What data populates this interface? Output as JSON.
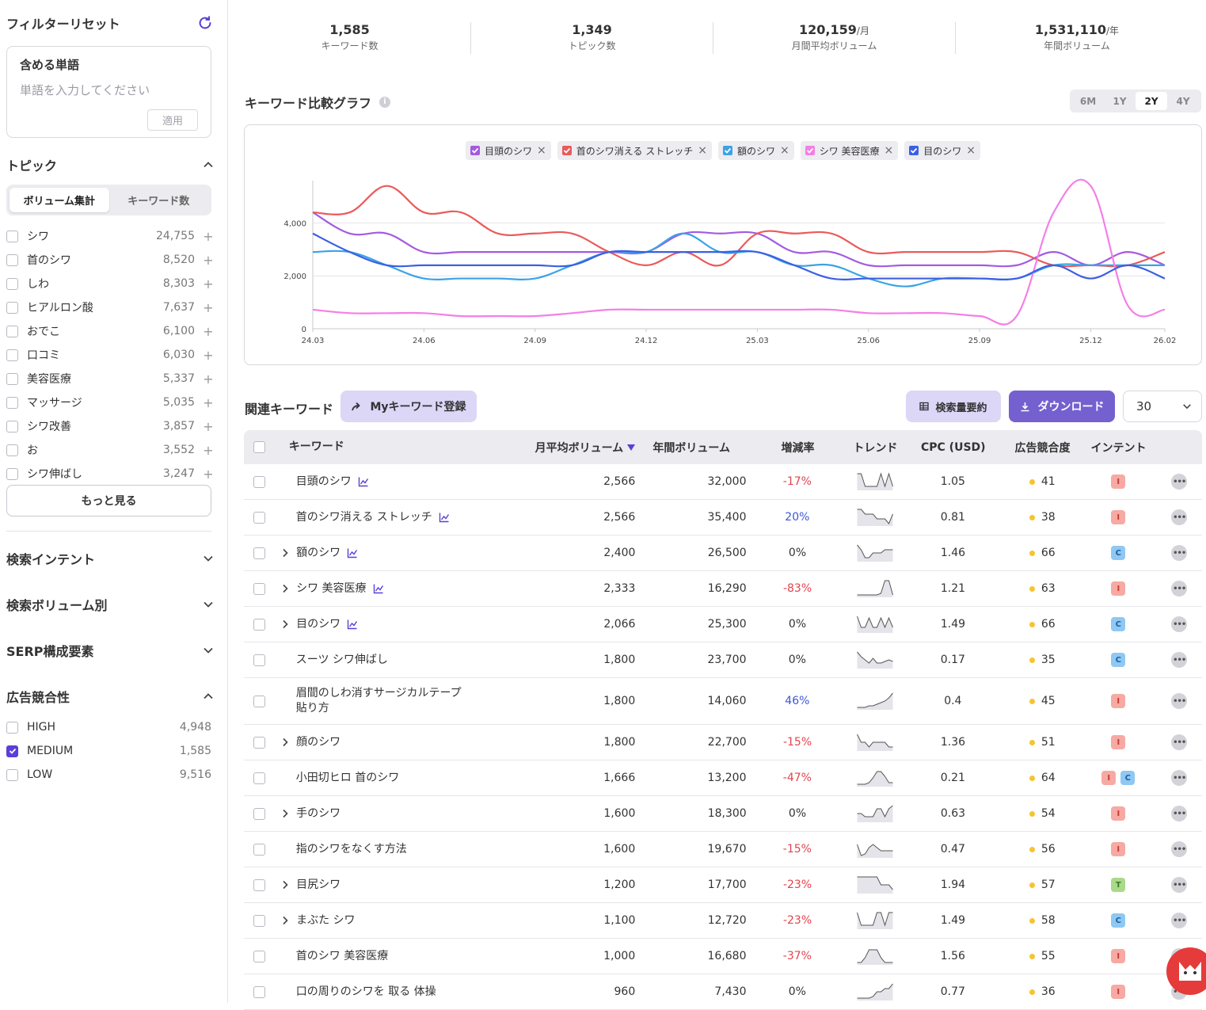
{
  "sidebar": {
    "filter_reset": "フィルターリセット",
    "include_words": {
      "title": "含める単語",
      "placeholder": "単語を入力してください",
      "apply": "適用"
    },
    "topic": {
      "title": "トピック",
      "tabs": [
        "ボリューム集計",
        "キーワード数"
      ],
      "items": [
        {
          "name": "シワ",
          "count": "24,755"
        },
        {
          "name": "首のシワ",
          "count": "8,520"
        },
        {
          "name": "しわ",
          "count": "8,303"
        },
        {
          "name": "ヒアルロン酸",
          "count": "7,637"
        },
        {
          "name": "おでこ",
          "count": "6,100"
        },
        {
          "name": "口コミ",
          "count": "6,030"
        },
        {
          "name": "美容医療",
          "count": "5,337"
        },
        {
          "name": "マッサージ",
          "count": "5,035"
        },
        {
          "name": "シワ改善",
          "count": "3,857"
        },
        {
          "name": "お",
          "count": "3,552"
        },
        {
          "name": "シワ伸ばし",
          "count": "3,247"
        }
      ],
      "more": "もっと見る"
    },
    "sections": [
      "検索インテント",
      "検索ボリューム別",
      "SERP構成要素"
    ],
    "competition": {
      "title": "広告競合性",
      "items": [
        {
          "name": "HIGH",
          "count": "4,948",
          "checked": false
        },
        {
          "name": "MEDIUM",
          "count": "1,585",
          "checked": true
        },
        {
          "name": "LOW",
          "count": "9,516",
          "checked": false
        }
      ]
    }
  },
  "stats": [
    {
      "value": "1,585",
      "unit": "",
      "label": "キーワード数"
    },
    {
      "value": "1,349",
      "unit": "",
      "label": "トピック数"
    },
    {
      "value": "120,159",
      "unit": "/月",
      "label": "月間平均ボリューム"
    },
    {
      "value": "1,531,110",
      "unit": "/年",
      "label": "年間ボリューム"
    }
  ],
  "graph": {
    "title": "キーワード比較グラフ",
    "info_icon": "i",
    "periods": [
      "6M",
      "1Y",
      "2Y",
      "4Y"
    ],
    "active_period": "2Y"
  },
  "chart_data": {
    "type": "line",
    "x": [
      "24.03",
      "24.04",
      "24.05",
      "24.06",
      "24.07",
      "24.08",
      "24.09",
      "24.10",
      "24.11",
      "24.12",
      "25.01",
      "25.02",
      "25.03",
      "25.04",
      "25.05",
      "25.06",
      "25.07",
      "25.08",
      "25.09",
      "25.10",
      "25.11",
      "25.12",
      "26.01",
      "26.02"
    ],
    "x_ticks": [
      "24.03",
      "24.06",
      "24.09",
      "24.12",
      "25.03",
      "25.06",
      "25.09",
      "25.12",
      "26.02"
    ],
    "y_ticks": [
      "0",
      "2,000",
      "4,000"
    ],
    "ylim": [
      0,
      5600
    ],
    "grid": true,
    "legend_position": "top-center",
    "series": [
      {
        "name": "目頭のシワ",
        "color": "#a35be0",
        "values": [
          4400,
          3600,
          3600,
          2900,
          2900,
          2900,
          2900,
          2900,
          2900,
          2900,
          3600,
          3600,
          3600,
          2900,
          2900,
          2400,
          2400,
          2400,
          2400,
          2400,
          2900,
          2400,
          2900,
          2400
        ]
      },
      {
        "name": "首のシワ消える ストレッチ",
        "color": "#ea5a5a",
        "values": [
          4400,
          4400,
          5400,
          4400,
          4400,
          3600,
          3600,
          3600,
          2900,
          2400,
          2900,
          2400,
          3600,
          3600,
          3600,
          2900,
          2900,
          2900,
          2900,
          2900,
          2400,
          2400,
          2400,
          2900
        ]
      },
      {
        "name": "額のシワ",
        "color": "#3aa3e6",
        "values": [
          2900,
          2900,
          2400,
          1900,
          1900,
          1900,
          1900,
          2400,
          2900,
          2900,
          3600,
          2900,
          2900,
          2400,
          2400,
          1900,
          1600,
          1900,
          1900,
          1900,
          2400,
          2400,
          2400,
          2400
        ]
      },
      {
        "name": "シワ 美容医療",
        "color": "#f47fe6",
        "values": [
          720,
          590,
          590,
          590,
          480,
          480,
          480,
          590,
          720,
          720,
          720,
          720,
          720,
          720,
          720,
          590,
          590,
          590,
          480,
          480,
          4400,
          5400,
          880,
          720
        ]
      },
      {
        "name": "目のシワ",
        "color": "#3b5fe4",
        "values": [
          3600,
          2900,
          2400,
          2400,
          2400,
          2400,
          2400,
          2400,
          2900,
          2900,
          2900,
          2900,
          2900,
          2400,
          1900,
          1900,
          1900,
          1900,
          1900,
          1900,
          2400,
          1900,
          2400,
          1900
        ]
      }
    ]
  },
  "related": {
    "title": "関連キーワード",
    "my_btn": "Myキーワード登録",
    "summary_btn": "検索量要約",
    "download_btn": "ダウンロード",
    "page_size": "30",
    "columns": [
      "キーワード",
      "月平均ボリューム",
      "年間ボリューム",
      "増減率",
      "トレンド",
      "CPC (USD)",
      "広告競合度",
      "インテント"
    ],
    "rows": [
      {
        "kw": "目頭のシワ",
        "kwicon": true,
        "expand": false,
        "mv": "2,566",
        "yv": "32,000",
        "gr": "-17%",
        "sign": "neg",
        "cpc": "1.05",
        "comp": "41",
        "intent": [
          "I"
        ],
        "trend": [
          10,
          10,
          2,
          2,
          2,
          2,
          10,
          2,
          10,
          2
        ]
      },
      {
        "kw": "首のシワ消える ストレッチ",
        "kwicon": true,
        "expand": false,
        "mv": "2,566",
        "yv": "35,400",
        "gr": "20%",
        "sign": "pos",
        "cpc": "0.81",
        "comp": "38",
        "intent": [
          "I"
        ],
        "trend": [
          10,
          10,
          7,
          7,
          7,
          4,
          4,
          4,
          1,
          7
        ]
      },
      {
        "kw": "額のシワ",
        "kwicon": true,
        "expand": true,
        "mv": "2,400",
        "yv": "26,500",
        "gr": "0%",
        "sign": "zero",
        "cpc": "1.46",
        "comp": "66",
        "intent": [
          "C"
        ],
        "trend": [
          10,
          7,
          2,
          2,
          5,
          5,
          5,
          7,
          7,
          7
        ]
      },
      {
        "kw": "シワ 美容医療",
        "kwicon": true,
        "expand": true,
        "mv": "2,333",
        "yv": "16,290",
        "gr": "-83%",
        "sign": "neg",
        "cpc": "1.21",
        "comp": "63",
        "intent": [
          "I"
        ],
        "trend": [
          1,
          1,
          1,
          1,
          1,
          1,
          2,
          10,
          10,
          1
        ]
      },
      {
        "kw": "目のシワ",
        "kwicon": true,
        "expand": true,
        "mv": "2,066",
        "yv": "25,300",
        "gr": "0%",
        "sign": "zero",
        "cpc": "1.49",
        "comp": "66",
        "intent": [
          "C"
        ],
        "trend": [
          10,
          3,
          3,
          9,
          3,
          3,
          9,
          3,
          9,
          3
        ]
      },
      {
        "kw": "スーツ シワ伸ばし",
        "kwicon": false,
        "expand": false,
        "mv": "1,800",
        "yv": "23,700",
        "gr": "0%",
        "sign": "zero",
        "cpc": "0.17",
        "comp": "35",
        "intent": [
          "C"
        ],
        "trend": [
          10,
          7,
          5,
          3,
          6,
          3,
          3,
          4,
          5,
          4
        ]
      },
      {
        "kw": "眉間のしわ消すサージカルテープ 貼り方",
        "kwicon": false,
        "expand": false,
        "mv": "1,800",
        "yv": "14,060",
        "gr": "46%",
        "sign": "pos",
        "cpc": "0.4",
        "comp": "45",
        "intent": [
          "I"
        ],
        "trend": [
          1,
          1,
          1,
          2,
          2,
          3,
          4,
          5,
          7,
          10
        ]
      },
      {
        "kw": "顔のシワ",
        "kwicon": false,
        "expand": true,
        "mv": "1,800",
        "yv": "22,700",
        "gr": "-15%",
        "sign": "neg",
        "cpc": "1.36",
        "comp": "51",
        "intent": [
          "I"
        ],
        "trend": [
          10,
          5,
          5,
          2,
          5,
          5,
          5,
          5,
          2,
          2
        ]
      },
      {
        "kw": "小田切ヒロ 首のシワ",
        "kwicon": false,
        "expand": false,
        "mv": "1,666",
        "yv": "13,200",
        "gr": "-47%",
        "sign": "neg",
        "cpc": "0.21",
        "comp": "64",
        "intent": [
          "I",
          "C"
        ],
        "trend": [
          1,
          1,
          1,
          2,
          5,
          9,
          9,
          6,
          2,
          2
        ]
      },
      {
        "kw": "手のシワ",
        "kwicon": false,
        "expand": true,
        "mv": "1,600",
        "yv": "18,300",
        "gr": "0%",
        "sign": "zero",
        "cpc": "0.63",
        "comp": "54",
        "intent": [
          "I"
        ],
        "trend": [
          5,
          5,
          3,
          3,
          3,
          8,
          8,
          3,
          8,
          10
        ]
      },
      {
        "kw": "指のシワをなくす方法",
        "kwicon": false,
        "expand": false,
        "mv": "1,600",
        "yv": "19,670",
        "gr": "-15%",
        "sign": "neg",
        "cpc": "0.47",
        "comp": "56",
        "intent": [
          "I"
        ],
        "trend": [
          8,
          1,
          2,
          6,
          8,
          6,
          4,
          4,
          4,
          4
        ]
      },
      {
        "kw": "目尻シワ",
        "kwicon": false,
        "expand": true,
        "mv": "1,200",
        "yv": "17,700",
        "gr": "-23%",
        "sign": "neg",
        "cpc": "1.94",
        "comp": "57",
        "intent": [
          "T"
        ],
        "trend": [
          10,
          10,
          10,
          10,
          10,
          10,
          5,
          5,
          5,
          2
        ]
      },
      {
        "kw": "まぶた シワ",
        "kwicon": false,
        "expand": true,
        "mv": "1,100",
        "yv": "12,720",
        "gr": "-23%",
        "sign": "neg",
        "cpc": "1.49",
        "comp": "58",
        "intent": [
          "C"
        ],
        "trend": [
          10,
          2,
          2,
          2,
          2,
          10,
          10,
          2,
          10,
          10
        ]
      },
      {
        "kw": "首のシワ 美容医療",
        "kwicon": false,
        "expand": false,
        "mv": "1,000",
        "yv": "16,680",
        "gr": "-37%",
        "sign": "neg",
        "cpc": "1.56",
        "comp": "55",
        "intent": [
          "I"
        ],
        "trend": [
          1,
          1,
          4,
          9,
          9,
          9,
          4,
          1,
          1,
          1
        ]
      },
      {
        "kw": "口の周りのシワを 取る 体操",
        "kwicon": false,
        "expand": false,
        "mv": "960",
        "yv": "7,430",
        "gr": "0%",
        "sign": "zero",
        "cpc": "0.77",
        "comp": "36",
        "intent": [
          "I"
        ],
        "trend": [
          1,
          1,
          1,
          1,
          2,
          5,
          5,
          7,
          7,
          10
        ]
      }
    ]
  }
}
